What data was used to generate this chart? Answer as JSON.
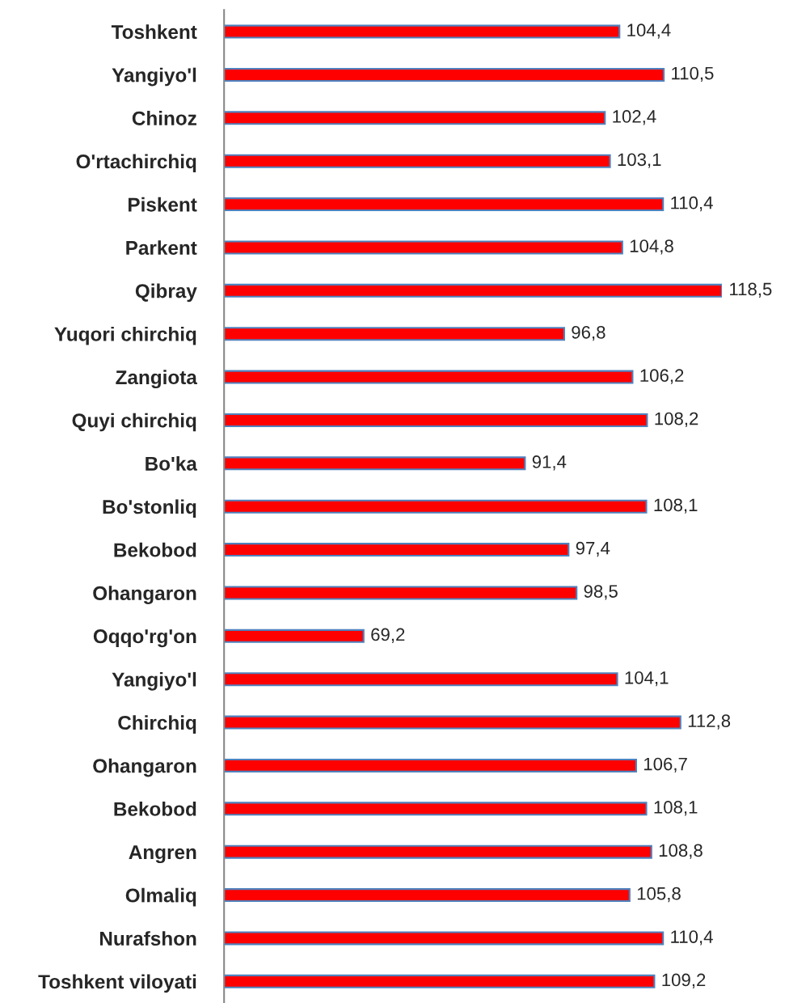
{
  "chart_data": {
    "type": "bar",
    "orientation": "horizontal",
    "categories": [
      "Toshkent",
      "Yangiyo'l",
      "Chinoz",
      "O'rtachirchiq",
      "Piskent",
      "Parkent",
      "Qibray",
      "Yuqori chirchiq",
      "Zangiota",
      "Quyi chirchiq",
      "Bo'ka",
      "Bo'stonliq",
      "Bekobod",
      "Ohangaron",
      "Oqqo'rg'on",
      "Yangiyo'l",
      "Chirchiq",
      "Ohangaron",
      "Bekobod",
      "Angren",
      "Olmaliq",
      "Nurafshon",
      "Toshkent viloyati"
    ],
    "values": [
      104.4,
      110.5,
      102.4,
      103.1,
      110.4,
      104.8,
      118.5,
      96.8,
      106.2,
      108.2,
      91.4,
      108.1,
      97.4,
      98.5,
      69.2,
      104.1,
      112.8,
      106.7,
      108.1,
      108.8,
      105.8,
      110.4,
      109.2
    ],
    "value_labels": [
      "104,4",
      "110,5",
      "102,4",
      "103,1",
      "110,4",
      "104,8",
      "118,5",
      "96,8",
      "106,2",
      "108,2",
      "91,4",
      "108,1",
      "97,4",
      "98,5",
      "69,2",
      "104,1",
      "112,8",
      "106,7",
      "108,1",
      "108,8",
      "105,8",
      "110,4",
      "109,2"
    ],
    "color": "#ff0000",
    "xlim": [
      50,
      118.5
    ],
    "tick_labels": "y",
    "grid": false,
    "legend": false
  }
}
